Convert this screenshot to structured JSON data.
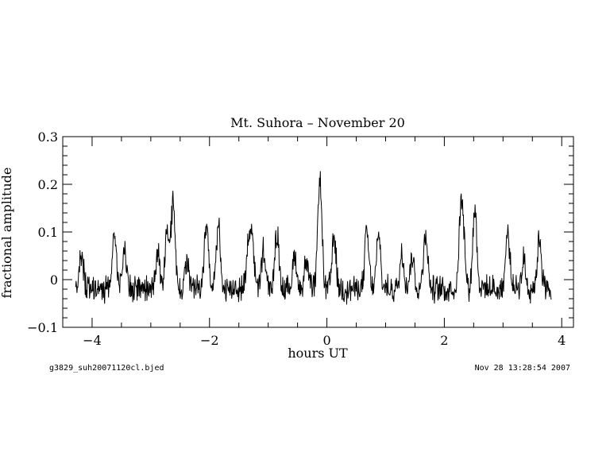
{
  "chart_data": {
    "type": "line",
    "title": "Mt. Suhora  – November 20",
    "xlabel": "hours UT",
    "ylabel": "fractional amplitude",
    "xlim": [
      -4.5,
      4.2
    ],
    "ylim": [
      -0.1,
      0.3
    ],
    "xticks": [
      -4,
      -2,
      0,
      2,
      4
    ],
    "xtick_labels": [
      "−4",
      "−2",
      "0",
      "2",
      "4"
    ],
    "yticks": [
      -0.1,
      0,
      0.1,
      0.2,
      0.3
    ],
    "ytick_labels": [
      "−0.1",
      "0",
      "0.1",
      "0.2",
      "0.3"
    ],
    "grid": false,
    "footer_left": "g3829_suh20071120cl.bjed",
    "footer_right": "Nov 28 13:28:54 2007",
    "series": [
      {
        "x_start": -4.28,
        "x_end": 3.82,
        "baseline": -0.02,
        "noise_amplitude": 0.022,
        "peaks": [
          {
            "x": -4.18,
            "y": 0.05
          },
          {
            "x": -3.62,
            "y": 0.1
          },
          {
            "x": -3.45,
            "y": 0.06
          },
          {
            "x": -2.88,
            "y": 0.06
          },
          {
            "x": -2.72,
            "y": 0.1
          },
          {
            "x": -2.62,
            "y": 0.16
          },
          {
            "x": -2.38,
            "y": 0.04
          },
          {
            "x": -2.05,
            "y": 0.12
          },
          {
            "x": -1.85,
            "y": 0.11
          },
          {
            "x": -1.35,
            "y": 0.05
          },
          {
            "x": -1.28,
            "y": 0.1
          },
          {
            "x": -1.08,
            "y": 0.06
          },
          {
            "x": -0.85,
            "y": 0.1
          },
          {
            "x": -0.55,
            "y": 0.05
          },
          {
            "x": -0.35,
            "y": 0.04
          },
          {
            "x": -0.12,
            "y": 0.21
          },
          {
            "x": 0.12,
            "y": 0.09
          },
          {
            "x": 0.68,
            "y": 0.1
          },
          {
            "x": 0.88,
            "y": 0.09
          },
          {
            "x": 1.28,
            "y": 0.06
          },
          {
            "x": 1.45,
            "y": 0.05
          },
          {
            "x": 1.68,
            "y": 0.1
          },
          {
            "x": 2.28,
            "y": 0.11
          },
          {
            "x": 2.32,
            "y": 0.08
          },
          {
            "x": 2.52,
            "y": 0.15
          },
          {
            "x": 3.08,
            "y": 0.1
          },
          {
            "x": 3.35,
            "y": 0.04
          },
          {
            "x": 3.62,
            "y": 0.09
          }
        ]
      }
    ]
  }
}
